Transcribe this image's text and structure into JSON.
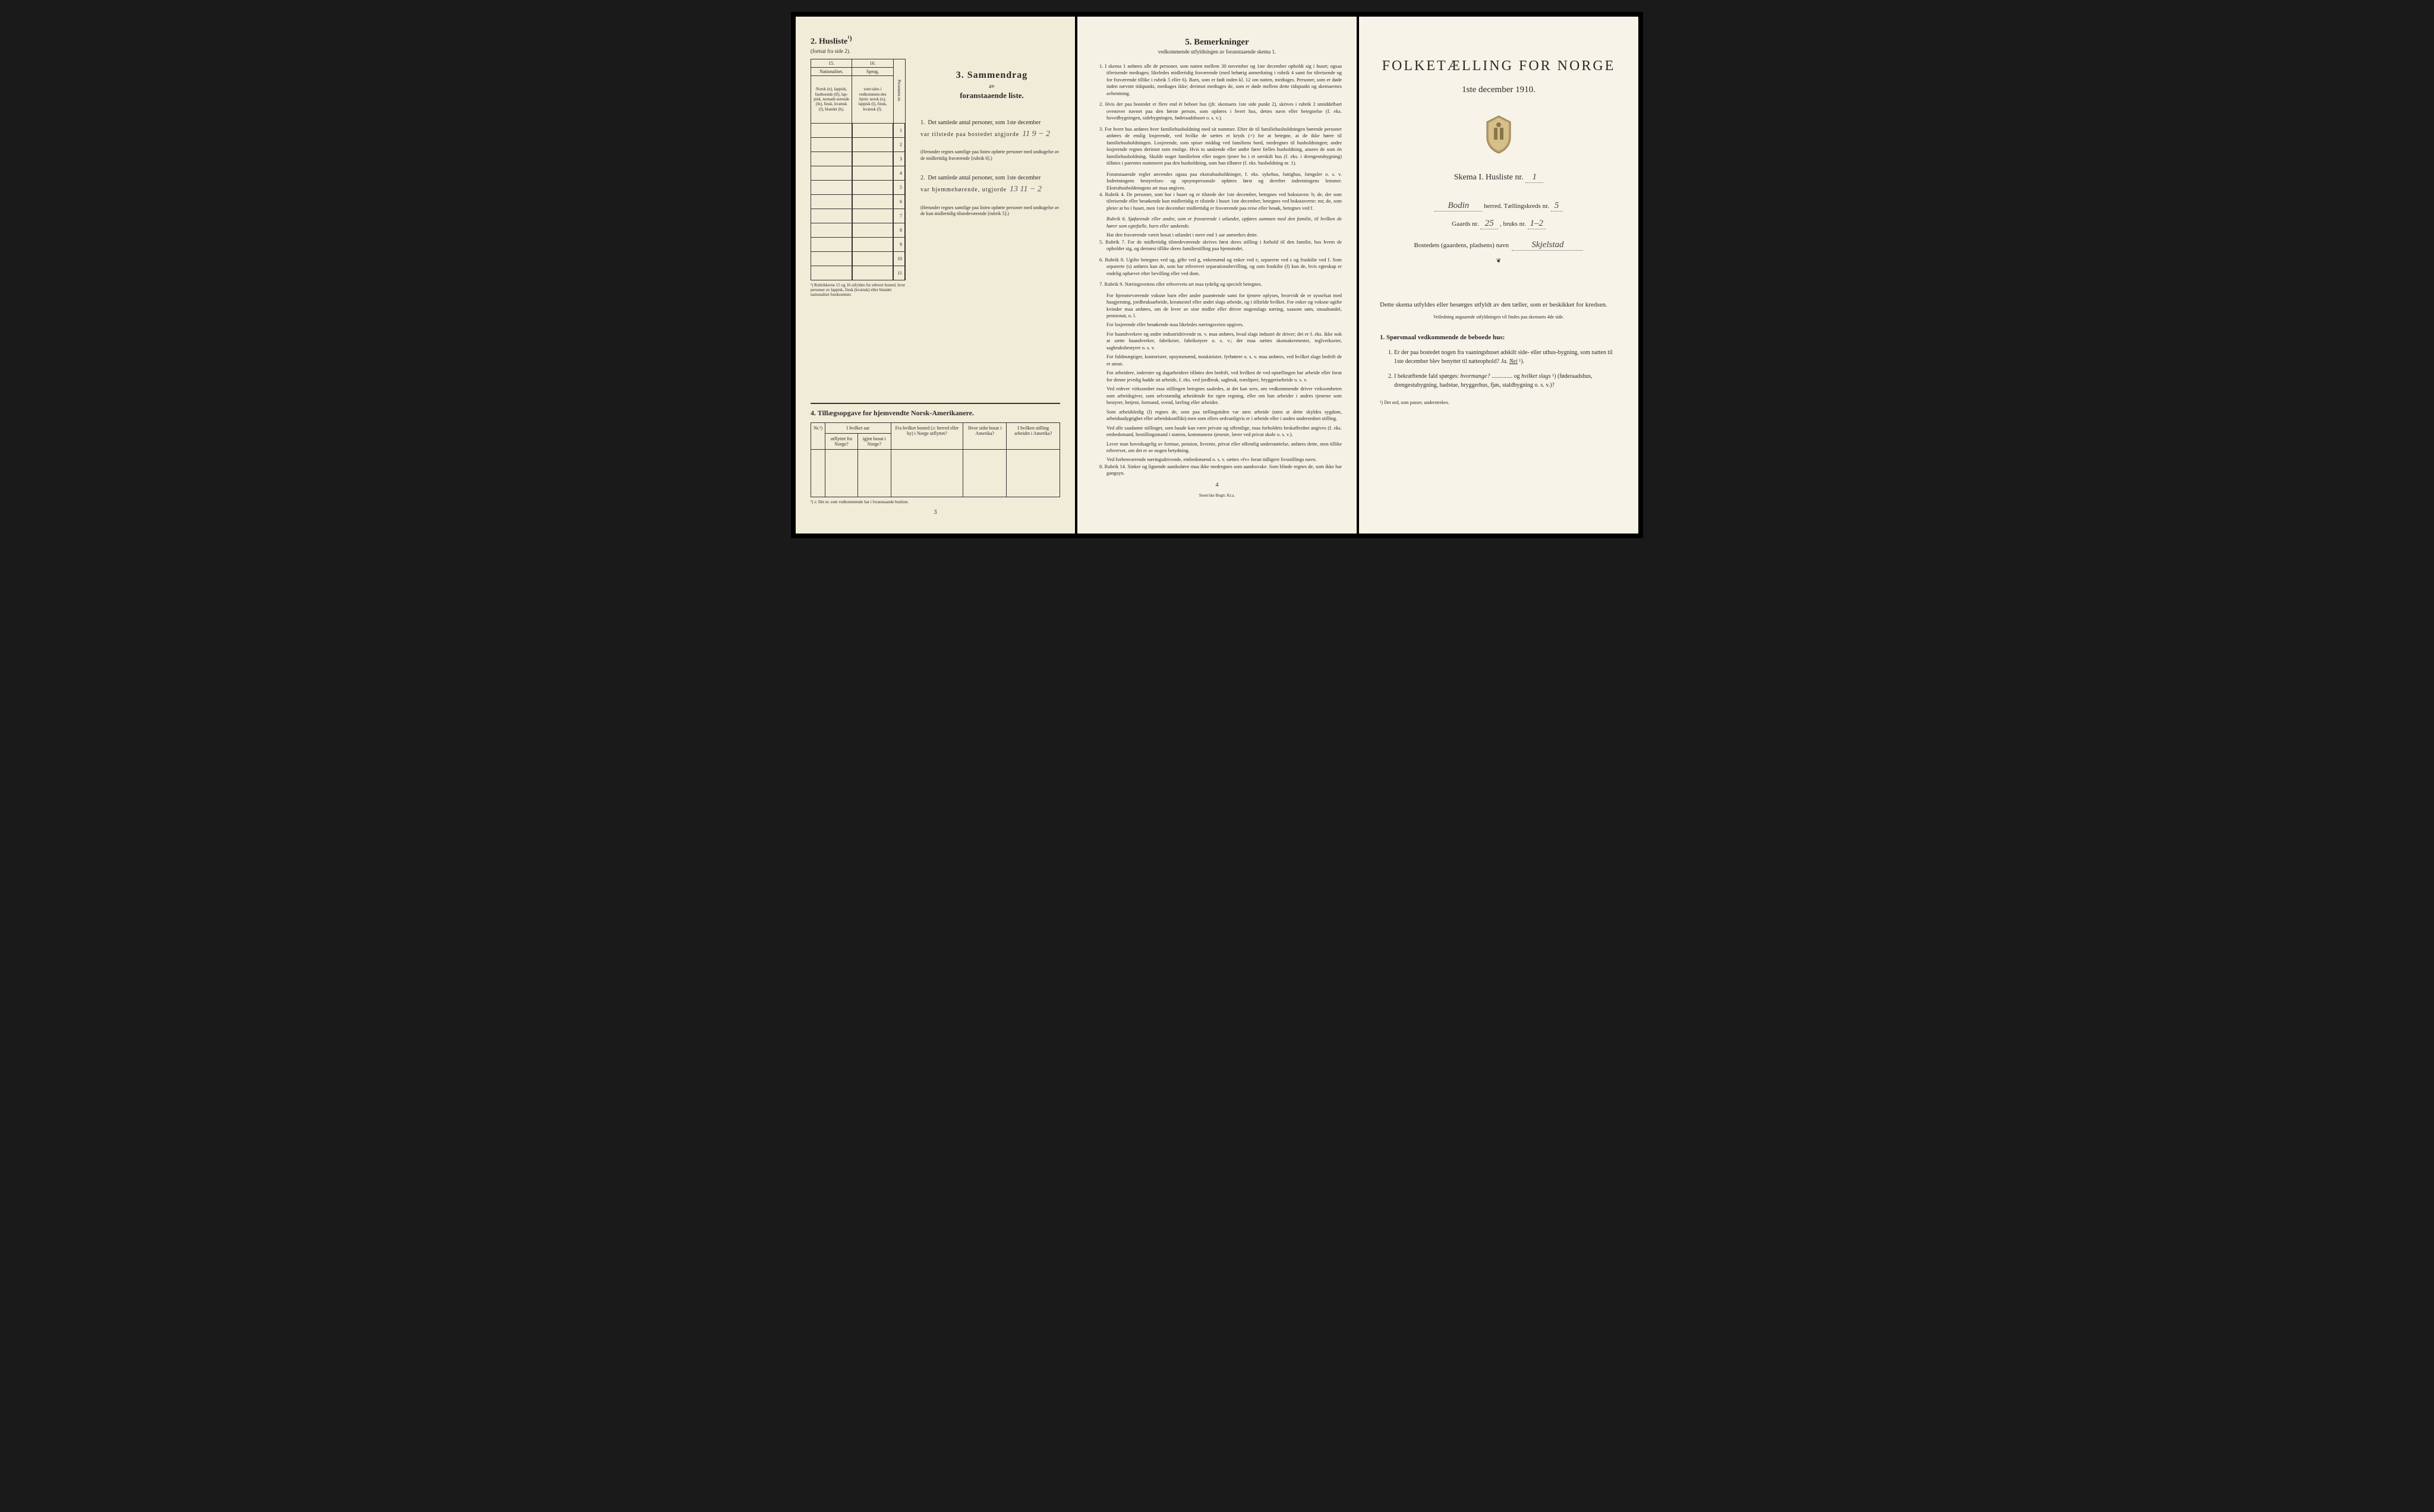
{
  "left": {
    "section2": {
      "title": "2.  Husliste",
      "superscript": "¹)",
      "subtitle": "(fortsat fra side 2).",
      "col15_num": "15.",
      "col16_num": "16.",
      "col15_head": "Nationalitet.",
      "col15_body": "Norsk (n), lappisk, fastboende (lf), lap-pisk, nomadi-serende (ln), finsk, kvænsk (f), blandet (b).",
      "col16_head": "Sprog,",
      "col16_body": "som tales i vedkommen-des hjem: norsk (n), lappisk (l), finsk, kvænsk (f).",
      "col_nr": "Personens nr.",
      "rows": [
        "1",
        "2",
        "3",
        "4",
        "5",
        "6",
        "7",
        "8",
        "9",
        "10",
        "11"
      ],
      "footnote": "¹) Rubrikkerne 15 og 16 utfyldes for ethvert bosted, hvor personer av lappisk, finsk (kvænsk) eller blandet nationalitet forekommer."
    },
    "section3": {
      "title": "3.  Sammendrag",
      "sub1": "av",
      "sub2": "foranstaaende liste.",
      "item1_num": "1.",
      "item1_text": "Det samlede antal personer, som 1ste december",
      "item1_line": "var tilstede paa bostedet utgjorde",
      "item1_val": "11    9 − 2",
      "item1_note": "(Herunder regnes samtlige paa listen opførte personer med undtagelse av de midlertidig fraværende [rubrik 6].)",
      "item2_num": "2.",
      "item2_text": "Det samlede antal personer, som 1ste december",
      "item2_line": "var hjemmehørende, utgjorde",
      "item2_val": "13   11 − 2",
      "item2_note": "(Herunder regnes samtlige paa listen opførte personer med undtagelse av de kun midlertidig tilstedeværende [rubrik 5].)"
    },
    "section4": {
      "title": "4.  Tillægsopgave for hjemvendte Norsk-Amerikanere.",
      "headers": {
        "nr": "Nr.²)",
        "aar": "I hvilket aar",
        "utflyttet": "utflyttet fra Norge?",
        "igjen": "igjen bosat i Norge?",
        "bosted": "Fra hvilket bosted (ɔ: herred eller by) i Norge utflyttet?",
        "sidst": "Hvor sidst bosat i Amerika?",
        "stilling": "I hvilken stilling arbeidet i Amerika?"
      },
      "footnote": "²) ɔ: Det nr. som vedkommende har i foranstaande husliste.",
      "pagenum": "3"
    }
  },
  "middle": {
    "title": "5.  Bemerkninger",
    "subtitle": "vedkommende utfyldningen av foranstaaende skema 1.",
    "items": [
      "I skema 1 anføres alle de personer, som natten mellem 30 november og 1ste december opholdt sig i huset; ogsaa tilreisende medtages; likeledes midlertidig fraværende (med behørig anmerkning i rubrik 4 samt for tilreisende og for fraværende tillike i rubrik 5 eller 6). Barn, som er født inden kl. 12 om natten, medtages. Personer, som er døde inden nævnte tidspunkt, medtages ikke; derimot medtages de, som er døde mellem dette tidspunkt og skemaernes avhentning.",
      "Hvis der paa bostedet er flere end ét beboet hus (jfr. skemaets 1ste side punkt 2), skrives i rubrik 2 umiddelbart ovenover navnet paa den første person, som opføres i hvert hus, dettes navn eller betegnelse (f. eks. hovedbygningen, sidebygningen, føderaadshuset o. s. v.).",
      "For hvert hus anføres hver familiehusholdning med sit nummer. Efter de til familiehusholdningen hørende personer anføres de enslig losjerende, ved hvilke de sættes et kryds (×) for at betegne, at de ikke hører til familiehusholdningen. Losjerende, som spiser middag ved familiens bord, medregnes til husholdningen; andre losjerende regnes derimot som enslige. Hvis to søskende eller andre fører fælles husholdning, ansees de som én familiehusholdning. Skulde noget familielem eller nogen tjener bo i et særskilt hus (f. eks. i drengestubygning) tilføies i parentes nummeret paa den husholdning, som han tilhører (f. eks. husholdning nr. 1).",
      "Rubrik 4. De personer, som bor i huset og er tilstede der 1ste december, betegnes ved bokstaven: b; de, der som tilreisende eller besøkende kun midlertidig er tilstede i huset 1ste december, betegnes ved bokstaverne: mt; de, som pleier at bo i huset, men 1ste december midlertidig er fraværende paa reise eller besøk, betegnes ved f.",
      "Rubrik 7. For de midlertidig tilstedeværende skrives først deres stilling i forhold til den familie, hos hvem de opholder sig, og dernæst tillike deres familiestilling paa hjemstedet.",
      "Rubrik 8. Ugifte betegnes ved ug, gifte ved g, enkemænd og enker ved e, separerte ved s og fraskilte ved f. Som separerte (s) anføres kun de, som har erhvervet separationsbevilling, og som fraskilte (f) kun de, hvis egteskap er endelig ophævet efter bevilling eller ved dom.",
      "Rubrik 9. Næringsveiens eller erhvervets art maa tydelig og specielt betegnes.",
      "Rubrik 14. Sinker og lignende aandssløve maa ikke medregnes som aandssvake. Som blinde regnes de, som ikke har gangsyn."
    ],
    "item3_extra": "Foranstaaende regler anvendes ogsaa paa ekstrahusholdninger, f. eks. sykehus, fattighus, fængsler o. s. v. Indretningens bestyrelses- og opsynspersonale opføres først og derefter indretningens lemmer. Ekstrahusholdningens art maa angives.",
    "item4_extra1": "Rubrik 6. Sjøfarende eller andre, som er fraværende i utlandet, opføres sammen med den familie, til hvilken de hører som egtefælle, barn eller søskende.",
    "item4_extra2": "Har den fraværende været bosat i utlandet i mere end 1 aar anmerkes dette.",
    "item7_paras": [
      "For hjemmeværende voksne barn eller andre paarørende samt for tjenere oplyses, hvorvidt de er sysselsat med husgjerning, jordbruksarbeide, kreaturstel eller andet slags arbeide, og i tilfælde hvilket. For enker og voksne ugifte kvinder maa anføres, om de lever av sine midler eller driver nogenslags næring, saasom søm, smaahandel, pensionat, o. l.",
      "For losjerende eller besøkende maa likeledes næringsveien opgives.",
      "For haandverkere og andre industridrivende m. v. maa anføres, hvad slags industri de driver; det er f. eks. ikke nok at sætte haandverker, fabrikeier, fabrikstyrer o. s. v.; der maa sættes skomakermester, teglverkseier, sagbruksbestyrer o. s. v.",
      "For fuldmægtiger, kontorister, opsynsmænd, maskinister, fyrbøtere o. s. v. maa anføres, ved hvilket slags bedrift de er ansat.",
      "For arbeidere, inderster og dagarbeidere tilføies den bedrift, ved hvilken de ved optællingen har arbeide eller forut for denne jevnlig hadde sit arbeide, f. eks. ved jordbruk, sagbruk, træsliperi, bryggeriarbeide o. s. v.",
      "Ved enhver virksomhet maa stillingen betegnes saaledes, at det kan sees, om vedkommende driver virksomheten som arbeidsgiver, som selvstændig arbeidende for egen regning, eller om han arbeider i andres tjeneste som bestyrer, betjent, formand, svend, lærling eller arbeider.",
      "Som arbeidsledig (l) regnes de, som paa tællingstiden var uten arbeide (uten at dette skyldes sygdom, arbeidsudygtighet eller arbeidskonflikt) men som ellers sedvanligvis er i arbeide eller i anden underordnet stilling.",
      "Ved alle saadanne stillinger, som baade kan være private og offentlige, maa forholdets beskaffenhet angives (f. eks. embedsmand, bestillingsmand i statens, kommunens tjeneste, lærer ved privat skole o. s. v.).",
      "Lever man hovedsagelig av formue, pension, livrente, privat eller offentlig understøttelse, anføres dette, men tillike erhvervet, om det er av nogen betydning.",
      "Ved forhenværende næringsdrivende, embedsmænd o. s. v. sættes «fv» foran tidligere livsstillings navn."
    ],
    "pagenum": "4",
    "printer": "Steen'ske Bogtr.  Kr.a."
  },
  "right": {
    "title": "FOLKETÆLLING FOR NORGE",
    "date": "1ste december 1910.",
    "skema": "Skema I.  Husliste nr.",
    "skema_val": "1",
    "herred_val": "Bodin",
    "herred_label": "herred.  Tællingskreds nr.",
    "kreds_val": "5",
    "gaards_label": "Gaards nr.",
    "gaards_val": "25",
    "bruks_label": ", bruks nr.",
    "bruks_val": "1–2",
    "bosted_label": "Bostedets (gaardens, pladsens) navn",
    "bosted_val": "Skjelstad",
    "intro": "Dette skema utfyldes eller besørges utfyldt av den tæller, som er beskikket for kredsen.",
    "veiled": "Veiledning angaaende utfyldningen vil findes paa skemaets 4de side.",
    "q1_title": "1. Spørsmaal vedkommende de beboede hus:",
    "q1_items": [
      "Er der paa bostedet nogen fra vaaningshuset adskilt side- eller uthus-bygning, som natten til 1ste december blev benyttet til natteophold?    Ja.   Nei ¹).",
      "I bekræftende fald spørges: hvormange? .............. og hvilket slags ¹) (føderaadshus, drengestubygning, badstue, bryggerhus, fjøs, staldbygning o. s. v.)?"
    ],
    "footnote": "¹) Det ord, som passer, understrekes."
  }
}
